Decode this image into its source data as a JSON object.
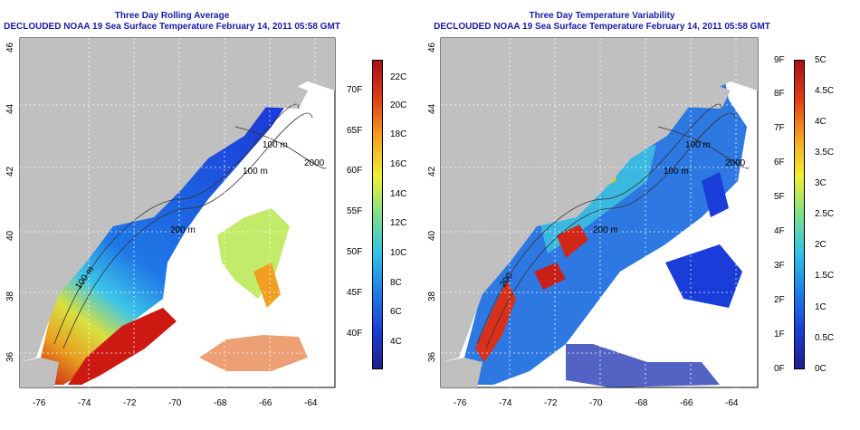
{
  "panels": [
    {
      "title": "Three Day Rolling Average",
      "subtitle": "DECLOUDED NOAA 19 Sea Surface Temperature February 14, 2011 05:58 GMT",
      "x_ticks": [
        "-76",
        "-74",
        "-72",
        "-70",
        "-68",
        "-66",
        "-64"
      ],
      "y_ticks": [
        "36",
        "38",
        "40",
        "42",
        "44",
        "46"
      ],
      "depth_labels": [
        "100 m",
        "100 m",
        "2000",
        "200 m",
        "100 m"
      ],
      "colorbar": {
        "gradient": [
          "#1e1e8c",
          "#1a3fd6",
          "#1f7fe8",
          "#2ec3e6",
          "#7fe08a",
          "#f0f032",
          "#f6a21e",
          "#e23c14",
          "#a8101a"
        ],
        "fahrenheit_labels": [
          "70F",
          "65F",
          "60F",
          "55F",
          "50F",
          "45F",
          "40F"
        ],
        "celsius_labels": [
          "22C",
          "20C",
          "18C",
          "16C",
          "14C",
          "12C",
          "10C",
          "8C",
          "6C",
          "4C"
        ]
      }
    },
    {
      "title": "Three Day Temperature Variability",
      "subtitle": "DECLOUDED NOAA 19 Sea Surface Temperature February 14, 2011 05:58 GMT",
      "x_ticks": [
        "-76",
        "-74",
        "-72",
        "-70",
        "-68",
        "-66",
        "-64"
      ],
      "y_ticks": [
        "36",
        "38",
        "40",
        "42",
        "44",
        "46"
      ],
      "depth_labels": [
        "100 m",
        "100 m",
        "2000",
        "200 m",
        "200"
      ],
      "colorbar": {
        "gradient": [
          "#1e1e8c",
          "#1a3fd6",
          "#1f7fe8",
          "#2ec3e6",
          "#7fe08a",
          "#f0f032",
          "#f6a21e",
          "#e23c14",
          "#a8101a"
        ],
        "fahrenheit_labels": [
          "9F",
          "8F",
          "7F",
          "6F",
          "5F",
          "4F",
          "3F",
          "2F",
          "1F",
          "0F"
        ],
        "celsius_labels": [
          "5C",
          "4.5C",
          "4C",
          "3.5C",
          "3C",
          "2.5C",
          "2C",
          "1.5C",
          "1C",
          "0.5C",
          "0C"
        ]
      }
    }
  ],
  "colors": {
    "land": "#c0c0c0",
    "title": "#1a1aa8",
    "grid": "#ffffff"
  }
}
